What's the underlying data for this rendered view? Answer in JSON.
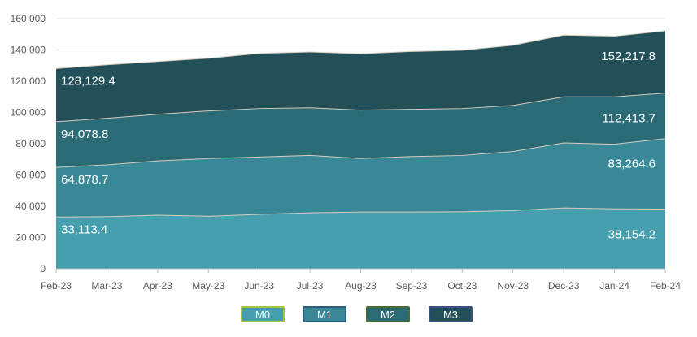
{
  "chart_data": {
    "type": "area",
    "stacked": true,
    "categories": [
      "Feb-23",
      "Mar-23",
      "Apr-23",
      "May-23",
      "Jun-23",
      "Jul-23",
      "Aug-23",
      "Sep-23",
      "Oct-23",
      "Nov-23",
      "Dec-23",
      "Jan-24",
      "Feb-24"
    ],
    "ylim": [
      0,
      160000
    ],
    "yticks": [
      0,
      20000,
      40000,
      60000,
      80000,
      100000,
      120000,
      140000,
      160000
    ],
    "ytick_labels": [
      "0",
      "20 000",
      "40 000",
      "60 000",
      "80 000",
      "100 000",
      "120 000",
      "140 000",
      "160 000"
    ],
    "grid": true,
    "legend_position": "bottom",
    "cumulative_totals": {
      "M0": [
        33113.4,
        33300,
        34300,
        33600,
        34800,
        35800,
        36300,
        36300,
        36400,
        37200,
        38900,
        38300,
        38154.2
      ],
      "M1": [
        64878.7,
        66500,
        69000,
        70500,
        71500,
        72500,
        70500,
        71800,
        72500,
        75000,
        80500,
        79700,
        83264.6
      ],
      "M2": [
        94078.8,
        96300,
        98800,
        101000,
        102500,
        103000,
        101500,
        102000,
        102500,
        104500,
        110000,
        110000,
        112413.7
      ],
      "M3": [
        128129.4,
        130500,
        132600,
        134700,
        137800,
        138700,
        137600,
        139000,
        139800,
        143000,
        149500,
        148800,
        152217.8
      ]
    },
    "series": [
      {
        "name": "M0",
        "color": "#459fae"
      },
      {
        "name": "M1",
        "color": "#398897"
      },
      {
        "name": "M2",
        "color": "#2b6b75"
      },
      {
        "name": "M3",
        "color": "#224f58"
      }
    ],
    "data_labels": {
      "first": [
        "33,113.4",
        "64,878.7",
        "94,078.8",
        "128,129.4"
      ],
      "last": [
        "38,154.2",
        "83,264.6",
        "112,413.7",
        "152,217.8"
      ]
    }
  }
}
